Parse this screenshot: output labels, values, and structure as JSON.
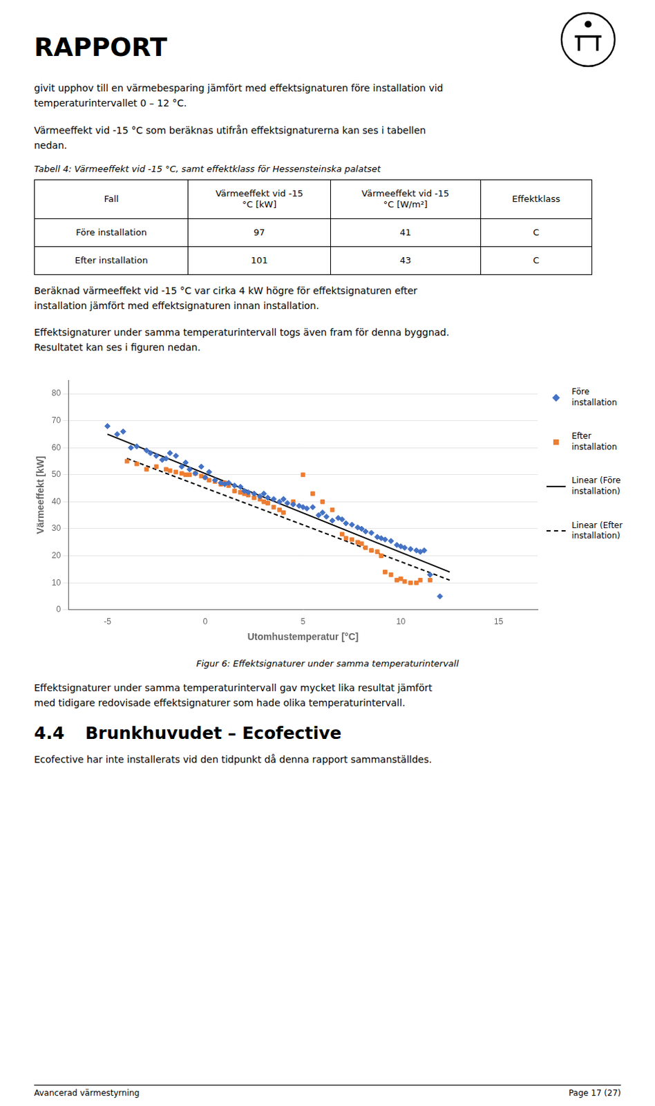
{
  "page": {
    "title": "RAPPORT",
    "paragraph1": "givit upphov till en värmebesparing jämfört med effektsignaturen före installation vid\ntemperaturintervallet 0 – 12 °C.",
    "paragraph2": "Värmeeffekt vid -15 °C som beräknas utifrån effektsignaturerna kan ses i tabellen\nnedan.",
    "table_caption": "Tabell 4: Värmeeffekt vid -15 °C, samt effektklass för Hessensteinska palatset",
    "table_headers": [
      "Fall",
      "Värmeeffekt vid -15\n°C [kW]",
      "Värmeeffekt vid -15\n°C [W/m²]",
      "Effektklass"
    ],
    "table_rows": [
      [
        "Före installation",
        "97",
        "41",
        "C"
      ],
      [
        "Efter installation",
        "101",
        "43",
        "C"
      ]
    ],
    "paragraph3": "Beräknad värmeeffekt vid -15 °C var cirka 4 kW högre för effektsignaturen efter\ninstallation jämfört med effektsignaturen innan installation.",
    "paragraph4": "Effektsignaturer under samma temperaturintervall togs även fram för denna byggnad.\nResultatet kan ses i figuren nedan.",
    "paragraph5": "Effektsignaturer under samma temperaturintervall gav mycket lika resultat jämfört\nmed tidigare redovisade effektsignaturer som hade olika temperaturintervall.",
    "section_num": "4.4",
    "section_title": "Brunkhuvudet – Ecofective",
    "paragraph6": "Ecofective har inte installerats vid den tidpunkt då denna rapport sammanställdes.",
    "footer_left": "Avancerad värmestyrning",
    "footer_right": "Page 17 (27)"
  },
  "chart_data": {
    "type": "scatter",
    "caption": "Figur 6: Effektsignaturer under samma temperaturintervall",
    "x_label": "Utomhustemperatur [°C]",
    "y_label": "Värmeeffekt [kW]",
    "xlim": [
      -7,
      17
    ],
    "ylim": [
      0,
      85
    ],
    "xticks": [
      -5,
      0,
      5,
      10,
      15
    ],
    "yticks": [
      0,
      10,
      20,
      30,
      40,
      50,
      60,
      70,
      80
    ],
    "grid": "y",
    "series": [
      {
        "name": "Före\ninstallation",
        "type": "scatter",
        "color": "#4472C4",
        "marker": "diamond",
        "x": [
          -5.0,
          -4.5,
          -4.2,
          -3.8,
          -3.5,
          -3.0,
          -2.8,
          -2.5,
          -2.2,
          -2.0,
          -1.8,
          -1.5,
          -1.2,
          -1.0,
          -0.8,
          -0.5,
          -0.2,
          0.0,
          0.2,
          0.5,
          0.8,
          1.0,
          1.2,
          1.5,
          1.8,
          2.0,
          2.2,
          2.5,
          2.8,
          3.0,
          3.2,
          3.5,
          3.8,
          4.0,
          4.2,
          4.5,
          4.8,
          5.0,
          5.2,
          5.5,
          5.8,
          6.0,
          6.2,
          6.5,
          6.8,
          7.0,
          7.2,
          7.5,
          7.8,
          8.0,
          8.2,
          8.5,
          8.8,
          9.0,
          9.2,
          9.5,
          9.8,
          10.0,
          10.2,
          10.5,
          10.8,
          11.0,
          11.2,
          11.5,
          12.0
        ],
        "values": [
          68.0,
          65.0,
          66.0,
          60.0,
          60.5,
          59.0,
          58.0,
          57.0,
          55.5,
          56.0,
          58.0,
          57.0,
          53.0,
          54.5,
          52.0,
          50.5,
          53.0,
          49.0,
          51.0,
          48.0,
          47.0,
          46.5,
          47.0,
          46.0,
          45.5,
          44.0,
          43.5,
          43.0,
          42.0,
          43.0,
          41.5,
          41.0,
          40.0,
          41.0,
          39.5,
          39.0,
          38.5,
          38.0,
          37.5,
          38.0,
          35.0,
          36.0,
          34.5,
          33.0,
          34.0,
          33.5,
          32.0,
          31.5,
          30.5,
          30.0,
          29.0,
          28.5,
          27.0,
          26.5,
          26.0,
          25.5,
          24.0,
          23.5,
          23.0,
          22.5,
          22.0,
          21.5,
          22.0,
          13.0,
          5.0
        ]
      },
      {
        "name": "Efter\ninstallation",
        "type": "scatter",
        "color": "#ED7D31",
        "marker": "square",
        "x": [
          -4.0,
          -3.5,
          -3.0,
          -2.5,
          -2.0,
          -1.8,
          -1.5,
          -1.2,
          -1.0,
          -0.8,
          -0.5,
          -0.2,
          0.0,
          0.2,
          0.5,
          0.8,
          1.0,
          1.2,
          1.5,
          1.8,
          2.0,
          2.2,
          2.5,
          2.8,
          3.0,
          3.2,
          3.5,
          3.8,
          4.0,
          4.5,
          5.0,
          5.5,
          6.0,
          6.5,
          7.0,
          7.2,
          7.5,
          7.8,
          8.0,
          8.2,
          8.5,
          8.8,
          9.0,
          9.2,
          9.5,
          9.8,
          10.0,
          10.2,
          10.5,
          10.8,
          11.0,
          11.5
        ],
        "values": [
          55.0,
          54.0,
          52.0,
          53.0,
          52.0,
          51.5,
          51.0,
          50.5,
          50.0,
          50.0,
          50.5,
          49.5,
          49.0,
          48.0,
          47.5,
          46.5,
          47.0,
          46.0,
          44.0,
          43.5,
          43.0,
          42.5,
          41.5,
          41.0,
          40.0,
          39.5,
          38.0,
          37.0,
          36.0,
          40.0,
          50.0,
          43.0,
          40.0,
          37.0,
          28.0,
          26.5,
          26.0,
          25.0,
          24.5,
          23.0,
          22.0,
          21.5,
          20.0,
          14.0,
          13.0,
          11.0,
          11.5,
          10.5,
          10.0,
          10.0,
          11.0,
          11.0
        ]
      },
      {
        "name": "Linear (Före\ninstallation)",
        "type": "line",
        "color": "#000000",
        "line_style": "solid",
        "x": [
          -5,
          12.5
        ],
        "values": [
          65.0,
          14.0
        ]
      },
      {
        "name": "Linear (Efter\ninstallation)",
        "type": "line",
        "color": "#000000",
        "line_style": "dashed",
        "x": [
          -4,
          12.5
        ],
        "values": [
          56.0,
          11.0
        ]
      }
    ]
  }
}
